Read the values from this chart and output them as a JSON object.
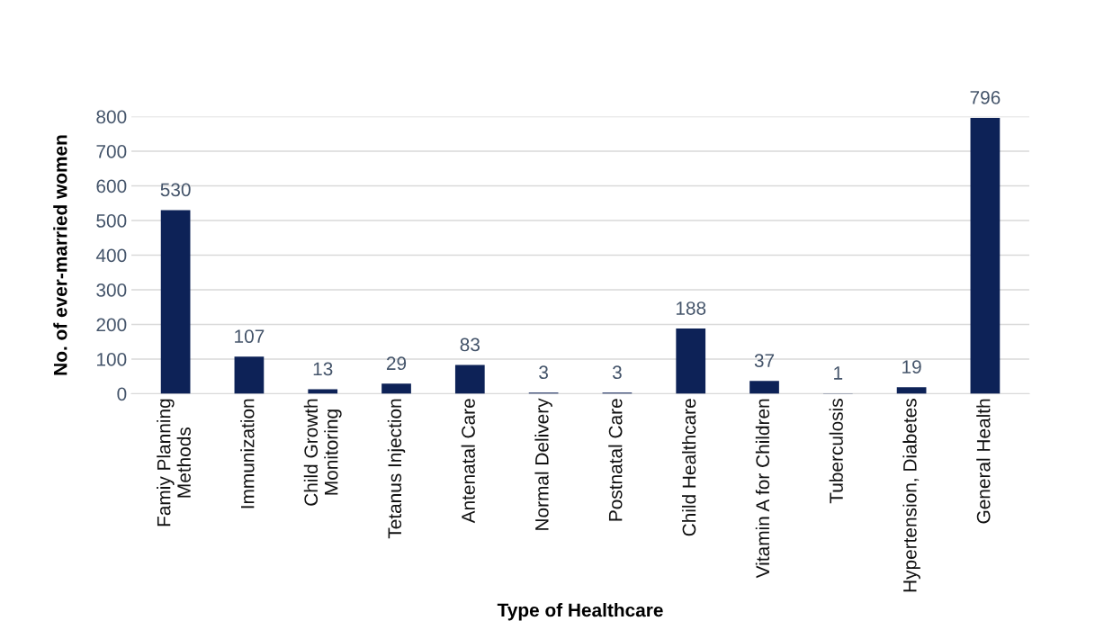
{
  "chart_data": {
    "type": "bar",
    "xlabel": "Type of Healthcare",
    "ylabel": "No. of ever-married women",
    "categories": [
      "Famiy Planning\nMethods",
      "Immunization",
      "Child Growth\nMonitoring",
      "Tetanus Injection",
      "Antenatal Care",
      "Normal Delivery",
      "Postnatal Care",
      "Child Healthcare",
      "Vitamin A for Children",
      "Tuberculosis",
      "Hypertension, Diabetes",
      "General Health"
    ],
    "values": [
      530,
      107,
      13,
      29,
      83,
      3,
      3,
      188,
      37,
      1,
      19,
      796
    ],
    "color": "#0d2257",
    "ylim": [
      0,
      800
    ],
    "yticks": [
      0,
      100,
      200,
      300,
      400,
      500,
      600,
      700,
      800
    ],
    "grid": "y",
    "data_labels": true
  }
}
